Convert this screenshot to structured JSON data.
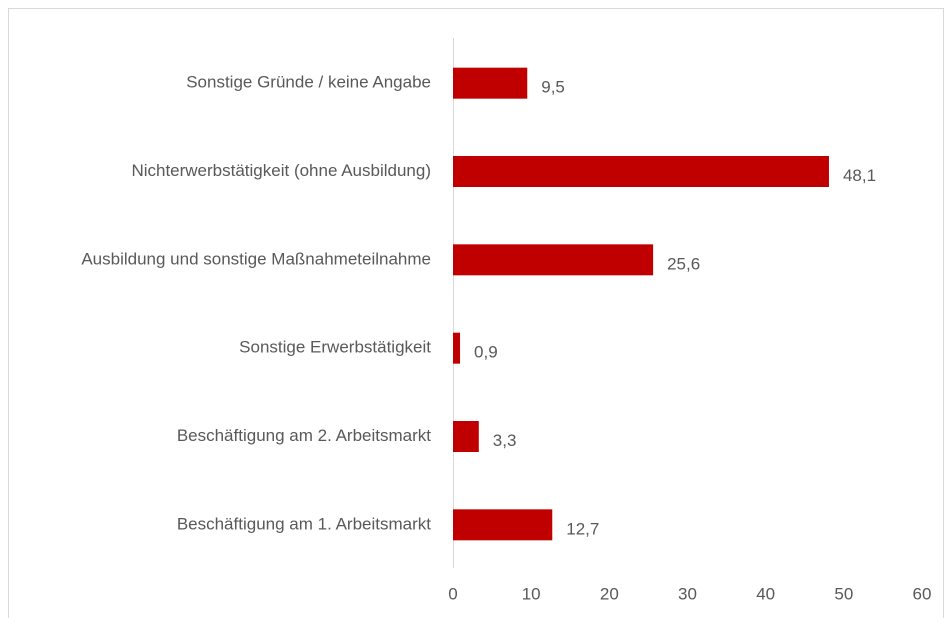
{
  "chart_data": {
    "type": "hbar",
    "categories": [
      "Sonstige Gründe / keine Angabe",
      "Nichterwerbstätigkeit (ohne Ausbildung)",
      "Ausbildung und sonstige Maßnahmeteilnahme",
      "Sonstige Erwerbstätigkeit",
      "Beschäftigung am 2. Arbeitsmarkt",
      "Beschäftigung am 1. Arbeitsmarkt"
    ],
    "values": [
      9.5,
      48.1,
      25.6,
      0.9,
      3.3,
      12.7
    ],
    "value_labels": [
      "9,5",
      "48,1",
      "25,6",
      "0,9",
      "3,3",
      "12,7"
    ],
    "color": "#c00000",
    "xlim": [
      0,
      60
    ],
    "xticks": [
      0,
      10,
      20,
      30,
      40,
      50,
      60
    ]
  }
}
